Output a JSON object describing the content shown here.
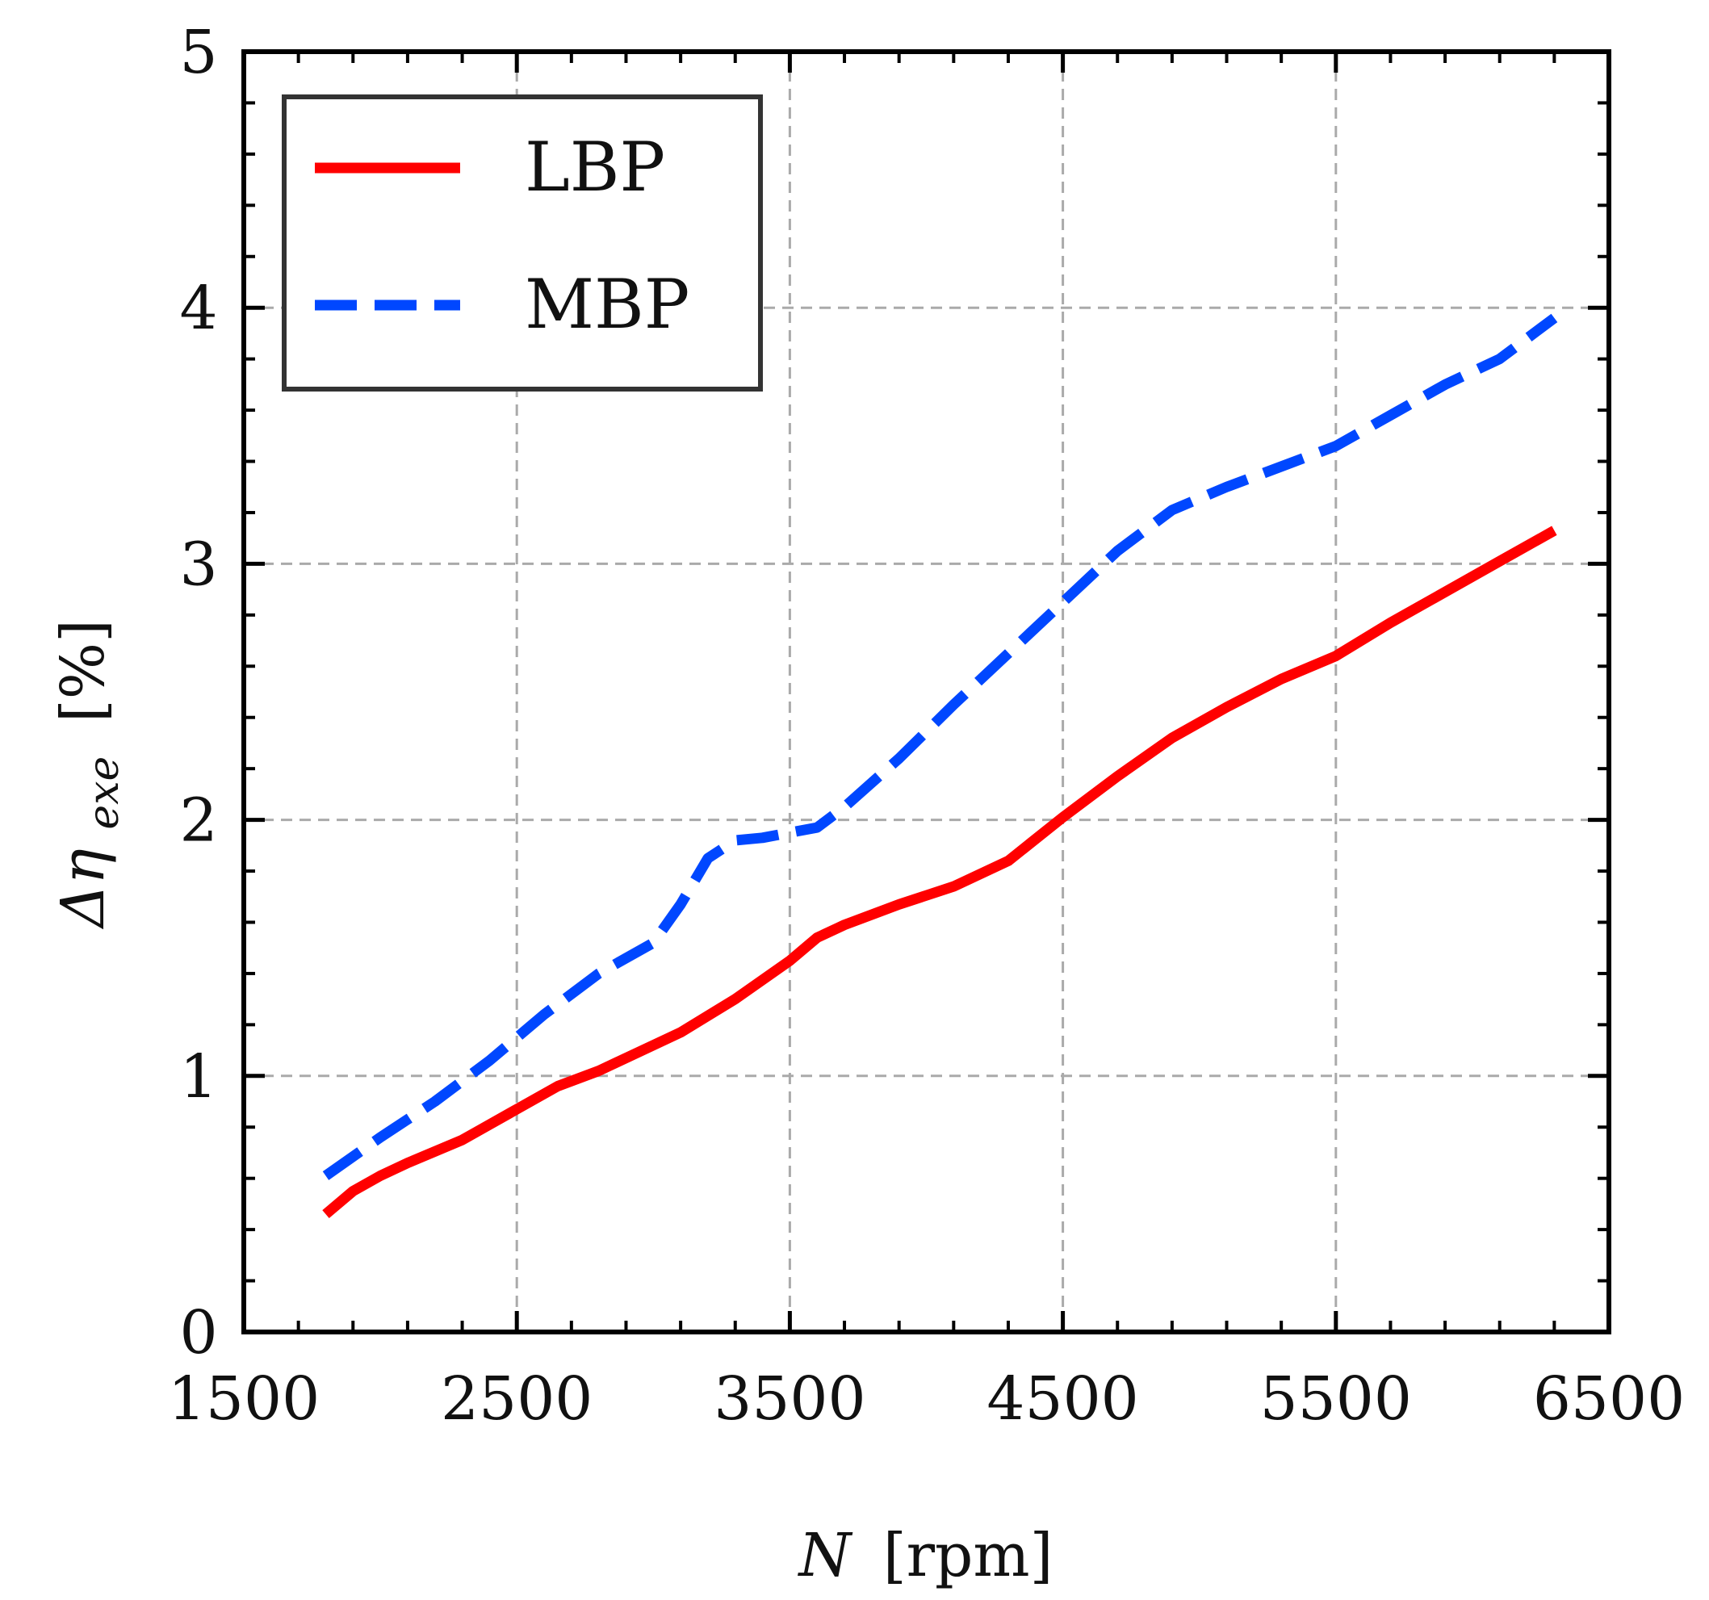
{
  "chart_data": {
    "type": "line",
    "xlabel": "N [rpm]",
    "xlabel_var": "N",
    "xlabel_unit": "[rpm]",
    "ylabel": "Δη_exe [%]",
    "ylabel_main": "Δη",
    "ylabel_sub": "exe",
    "ylabel_unit": "[%]",
    "xlim": [
      1500,
      6500
    ],
    "ylim": [
      0,
      5
    ],
    "x_ticks": [
      "1500",
      "2500",
      "3500",
      "4500",
      "5500",
      "6500"
    ],
    "y_ticks": [
      "0",
      "1",
      "2",
      "3",
      "4",
      "5"
    ],
    "grid": true,
    "legend_position": "top-left",
    "series": [
      {
        "name": "LBP",
        "color": "#ff0000",
        "style": "solid",
        "x": [
          1800,
          1900,
          2000,
          2100,
          2300,
          2500,
          2650,
          2800,
          3000,
          3100,
          3300,
          3500,
          3600,
          3700,
          3900,
          4100,
          4300,
          4500,
          4700,
          4900,
          5100,
          5300,
          5500,
          5700,
          5900,
          6100,
          6300
        ],
        "y": [
          0.46,
          0.55,
          0.61,
          0.66,
          0.75,
          0.87,
          0.96,
          1.02,
          1.12,
          1.17,
          1.3,
          1.45,
          1.54,
          1.59,
          1.67,
          1.74,
          1.84,
          2.01,
          2.17,
          2.32,
          2.44,
          2.55,
          2.64,
          2.77,
          2.89,
          3.01,
          3.13
        ]
      },
      {
        "name": "MBP",
        "color": "#0047ff",
        "style": "dashed",
        "x": [
          1800,
          2000,
          2200,
          2400,
          2600,
          2800,
          3000,
          3100,
          3200,
          3300,
          3400,
          3600,
          3700,
          3900,
          4100,
          4300,
          4500,
          4700,
          4900,
          5100,
          5300,
          5500,
          5700,
          5900,
          6100,
          6300
        ],
        "y": [
          0.61,
          0.76,
          0.9,
          1.06,
          1.24,
          1.4,
          1.52,
          1.67,
          1.85,
          1.92,
          1.93,
          1.97,
          2.05,
          2.24,
          2.45,
          2.65,
          2.85,
          3.05,
          3.21,
          3.3,
          3.38,
          3.46,
          3.58,
          3.7,
          3.8,
          3.96
        ]
      }
    ]
  }
}
